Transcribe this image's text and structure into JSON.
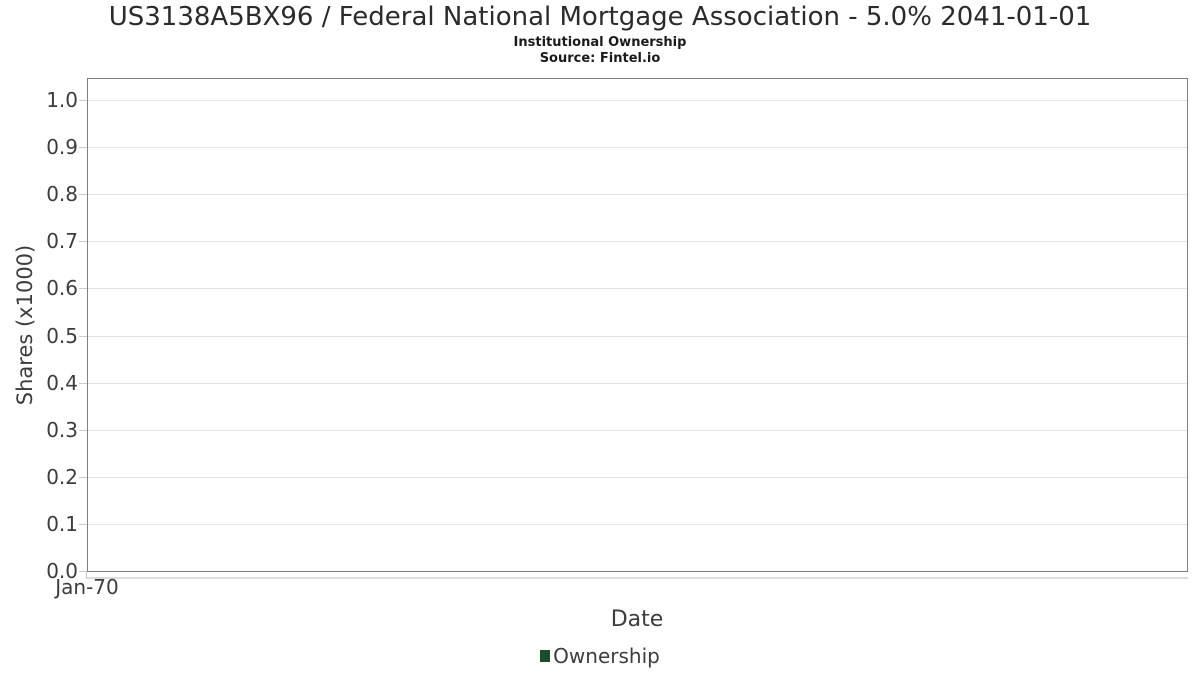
{
  "colors": {
    "text_primary": "#2b2b2b",
    "text_secondary": "#3d3d3d",
    "plot_border": "#7e7e7e",
    "gridline": "#e4e4e4",
    "tick_mark": "#cccccc",
    "x_axis_line": "#dcdcdc",
    "series_green": "#1e4d2b"
  },
  "chart_data": {
    "type": "line",
    "title": "US3138A5BX96 / Federal National Mortgage Association - 5.0% 2041-01-01",
    "subtitle": "Institutional Ownership",
    "source_note": "Source: Fintel.io",
    "xlabel": "Date",
    "ylabel": "Shares (x1000)",
    "x_tick_labels": [
      "Jan-70"
    ],
    "y_tick_labels": [
      "0.0",
      "0.1",
      "0.2",
      "0.3",
      "0.4",
      "0.5",
      "0.6",
      "0.7",
      "0.8",
      "0.9",
      "1.0"
    ],
    "ylim": [
      0.0,
      1.05
    ],
    "grid": "horizontal",
    "legend_position": "bottom-center",
    "series": [
      {
        "name": "Ownership",
        "color": "#1e4d2b",
        "x": [],
        "values": []
      }
    ]
  }
}
